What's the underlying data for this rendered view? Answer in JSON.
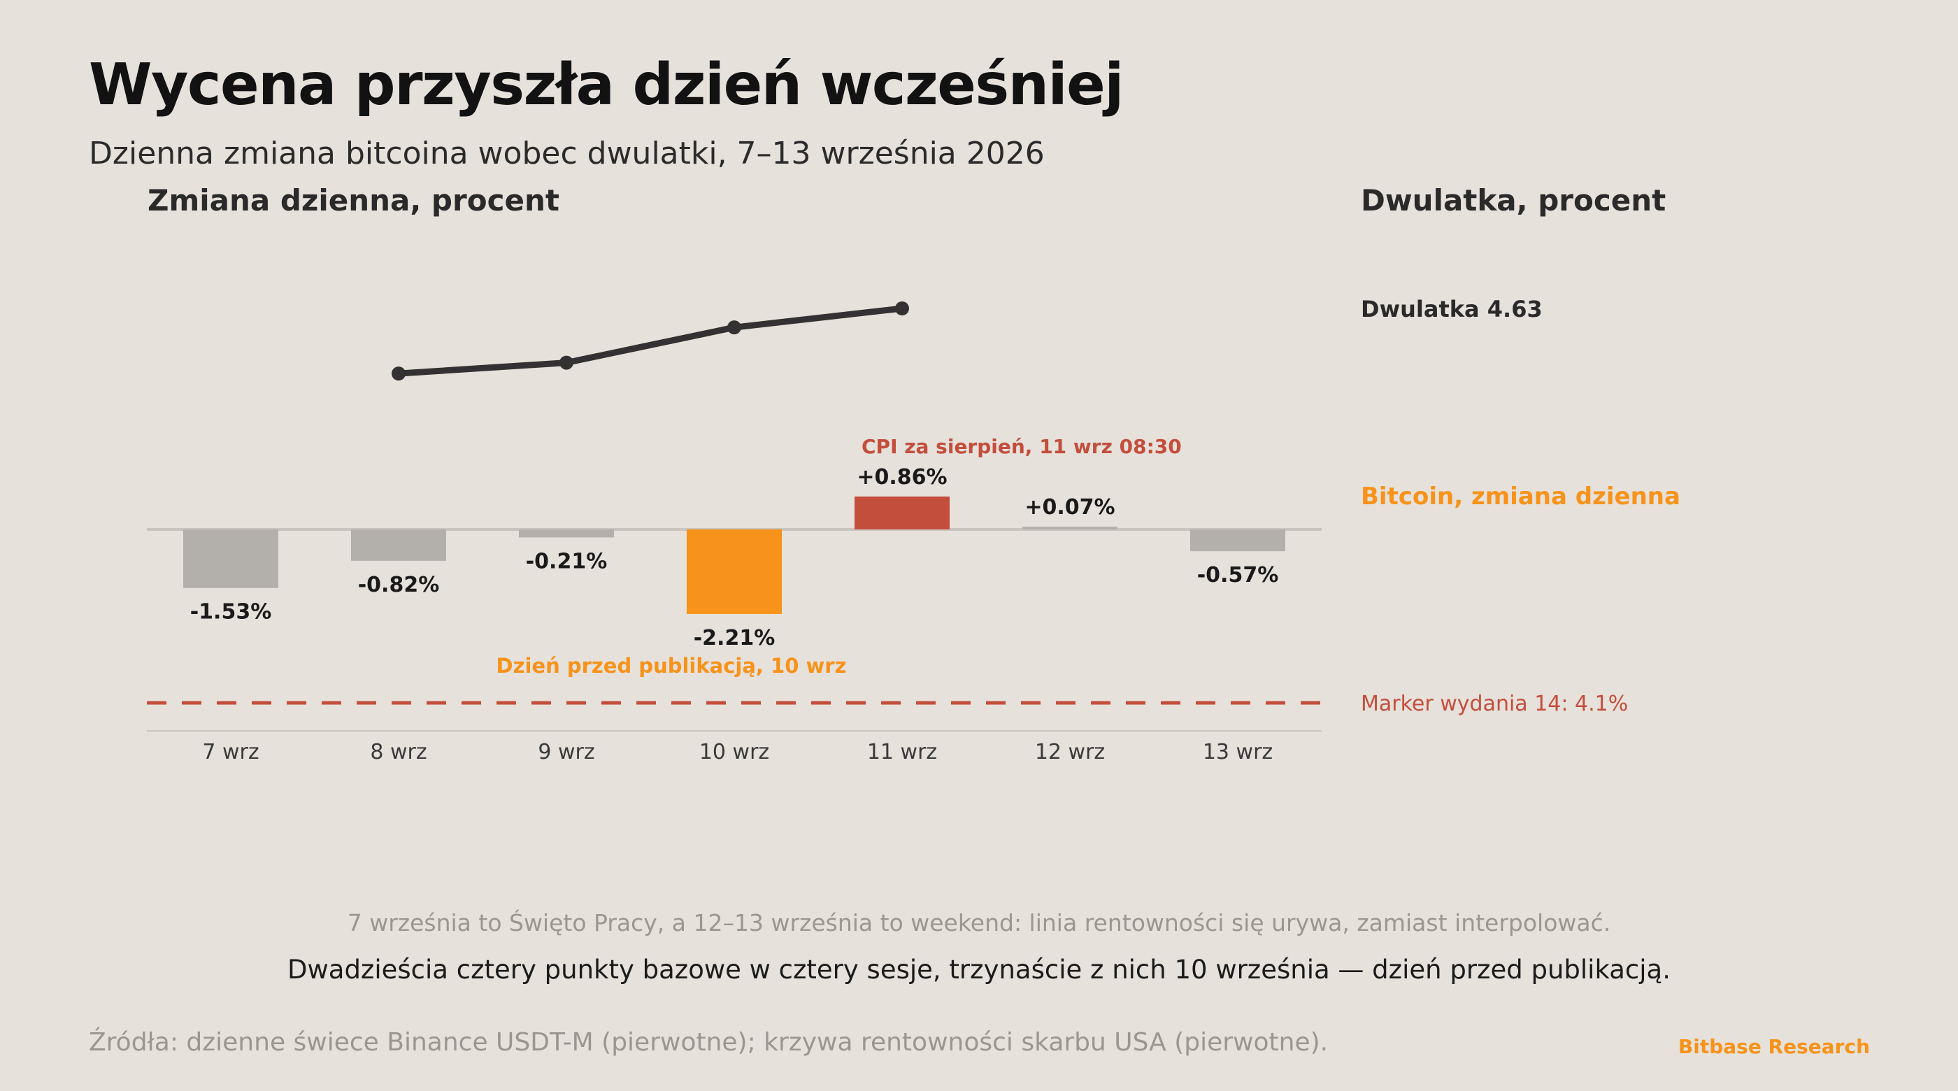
{
  "header": {
    "title": "Wycena przyszła dzień wcześniej",
    "subtitle": "Dzienna zmiana bitcoina wobec dwulatki, 7–13 września 2026"
  },
  "colors": {
    "bar_default": "#b3b0ac",
    "bar_highlight": "#f7931a",
    "bar_cpi": "#c44e3c",
    "line": "#333131",
    "marker": "#c44e3c",
    "baseline": "#c9c4bd",
    "axis": "#c9c4bd",
    "text_dark": "#1a1a1a",
    "text_muted": "#9a9690",
    "brand": "#f7931a"
  },
  "chart_data": {
    "type": "bar",
    "categories": [
      "7 wrz",
      "8 wrz",
      "9 wrz",
      "10 wrz",
      "11 wrz",
      "12 wrz",
      "13 wrz"
    ],
    "left_axis_label": "Zmiana dzienna, procent",
    "right_axis_label": "Dwulatka, procent",
    "bar_ylim": [
      -3.5,
      2.0
    ],
    "line_ylim": [
      4.0,
      4.7
    ],
    "series": [
      {
        "name": "Bitcoin, zmiana dzienna",
        "kind": "bar",
        "values": [
          -1.53,
          -0.82,
          -0.21,
          -2.21,
          0.86,
          0.07,
          -0.57
        ],
        "labels": [
          "-1.53%",
          "-0.82%",
          "-0.21%",
          "-2.21%",
          "+0.86%",
          "+0.07%",
          "-0.57%"
        ]
      },
      {
        "name": "Dwulatka",
        "kind": "line",
        "values": [
          null,
          4.39,
          4.43,
          4.56,
          4.63,
          null,
          null
        ],
        "end_label": "Dwulatka 4.63"
      }
    ],
    "reference_line": {
      "value": 4.1,
      "label": "Marker wydania 14: 4.1%"
    },
    "annotations": [
      {
        "category": "10 wrz",
        "text": "Dzień przed publikacją, 10 wrz"
      },
      {
        "category": "11 wrz",
        "text": "CPI za sierpień, 11 wrz 08:30"
      }
    ]
  },
  "footer": {
    "note": "7 września to Święto Pracy, a 12–13 września to weekend: linia rentowności się urywa, zamiast interpolować.",
    "takeaway": "Dwadzieścia cztery punkty bazowe w cztery sesje, trzynaście z nich 10 września — dzień przed publikacją.",
    "source": "Źródła: dzienne świece Binance USDT-M (pierwotne); krzywa rentowności skarbu USA (pierwotne).",
    "brand": "Bitbase Research"
  }
}
